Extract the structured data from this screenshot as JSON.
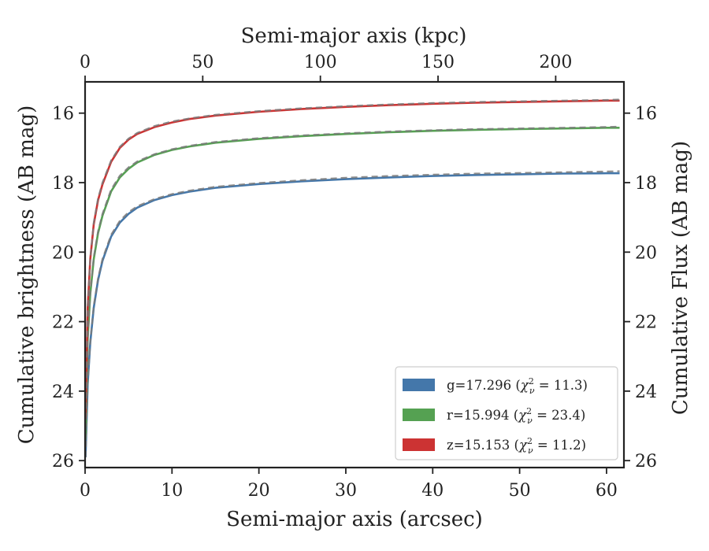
{
  "chart_data": {
    "type": "line",
    "xlabel": "Semi-major axis (arcsec)",
    "xlabel_top": "Semi-major axis (kpc)",
    "ylabel": "Cumulative brightness (AB mag)",
    "ylabel_right": "Cumulative Flux (AB mag)",
    "xlim": [
      0,
      62
    ],
    "xlim_top": [
      0,
      229
    ],
    "ylim": [
      26.2,
      15.1
    ],
    "y_inverted": true,
    "grid": false,
    "legend_position": "lower-right",
    "x_ticks": [
      "0",
      "10",
      "20",
      "30",
      "40",
      "50",
      "60"
    ],
    "x_ticks_top": [
      "0",
      "50",
      "100",
      "150",
      "200"
    ],
    "y_ticks": [
      "16",
      "18",
      "20",
      "22",
      "24",
      "26"
    ],
    "y_ticks_right": [
      "16",
      "18",
      "20",
      "22",
      "24",
      "26"
    ],
    "x": [
      0.05,
      0.3,
      0.6,
      1,
      1.5,
      2,
      3,
      4,
      5,
      6,
      8,
      10,
      12,
      15,
      20,
      25,
      30,
      35,
      40,
      45,
      50,
      55,
      60,
      61.5
    ],
    "series": [
      {
        "band": "g",
        "legend_main": "g=17.296 (",
        "legend_chi": "χ",
        "legend_sup": "2",
        "legend_sub": "ν",
        "legend_tail": " = 11.3)",
        "color": "#4477aa",
        "values": [
          25.9,
          23.8,
          22.6,
          21.6,
          20.8,
          20.25,
          19.55,
          19.15,
          18.9,
          18.72,
          18.5,
          18.36,
          18.26,
          18.15,
          18.04,
          17.96,
          17.9,
          17.85,
          17.81,
          17.78,
          17.76,
          17.74,
          17.73,
          17.73
        ],
        "model_values": [
          25.9,
          23.8,
          22.6,
          21.55,
          20.75,
          20.2,
          19.5,
          19.1,
          18.85,
          18.68,
          18.47,
          18.33,
          18.23,
          18.12,
          18.01,
          17.93,
          17.86,
          17.81,
          17.77,
          17.74,
          17.72,
          17.7,
          17.68,
          17.67
        ]
      },
      {
        "band": "r",
        "legend_main": "r=15.994 (",
        "legend_chi": "χ",
        "legend_sup": "2",
        "legend_sub": "ν",
        "legend_tail": " = 23.4)",
        "color": "#55a152",
        "values": [
          25.4,
          22.5,
          21.2,
          20.2,
          19.45,
          18.95,
          18.25,
          17.85,
          17.6,
          17.42,
          17.2,
          17.06,
          16.96,
          16.85,
          16.74,
          16.66,
          16.6,
          16.55,
          16.51,
          16.48,
          16.46,
          16.44,
          16.42,
          16.42
        ],
        "model_values": [
          25.4,
          22.5,
          21.2,
          20.15,
          19.4,
          18.9,
          18.2,
          17.8,
          17.56,
          17.39,
          17.18,
          17.04,
          16.94,
          16.83,
          16.72,
          16.64,
          16.58,
          16.53,
          16.49,
          16.46,
          16.44,
          16.42,
          16.4,
          16.39
        ]
      },
      {
        "band": "z",
        "legend_main": "z=15.153 (",
        "legend_chi": "χ",
        "legend_sup": "2",
        "legend_sub": "ν",
        "legend_tail": " = 11.2)",
        "color": "#cc3333",
        "values": [
          24.8,
          21.6,
          20.2,
          19.2,
          18.5,
          18.05,
          17.4,
          17.0,
          16.76,
          16.6,
          16.4,
          16.27,
          16.17,
          16.07,
          15.96,
          15.88,
          15.82,
          15.77,
          15.73,
          15.7,
          15.68,
          15.66,
          15.64,
          15.64
        ],
        "model_values": [
          24.8,
          21.6,
          20.2,
          19.15,
          18.45,
          18.0,
          17.36,
          16.97,
          16.73,
          16.57,
          16.37,
          16.24,
          16.15,
          16.05,
          15.94,
          15.86,
          15.8,
          15.75,
          15.71,
          15.68,
          15.66,
          15.64,
          15.62,
          15.61
        ]
      }
    ]
  }
}
